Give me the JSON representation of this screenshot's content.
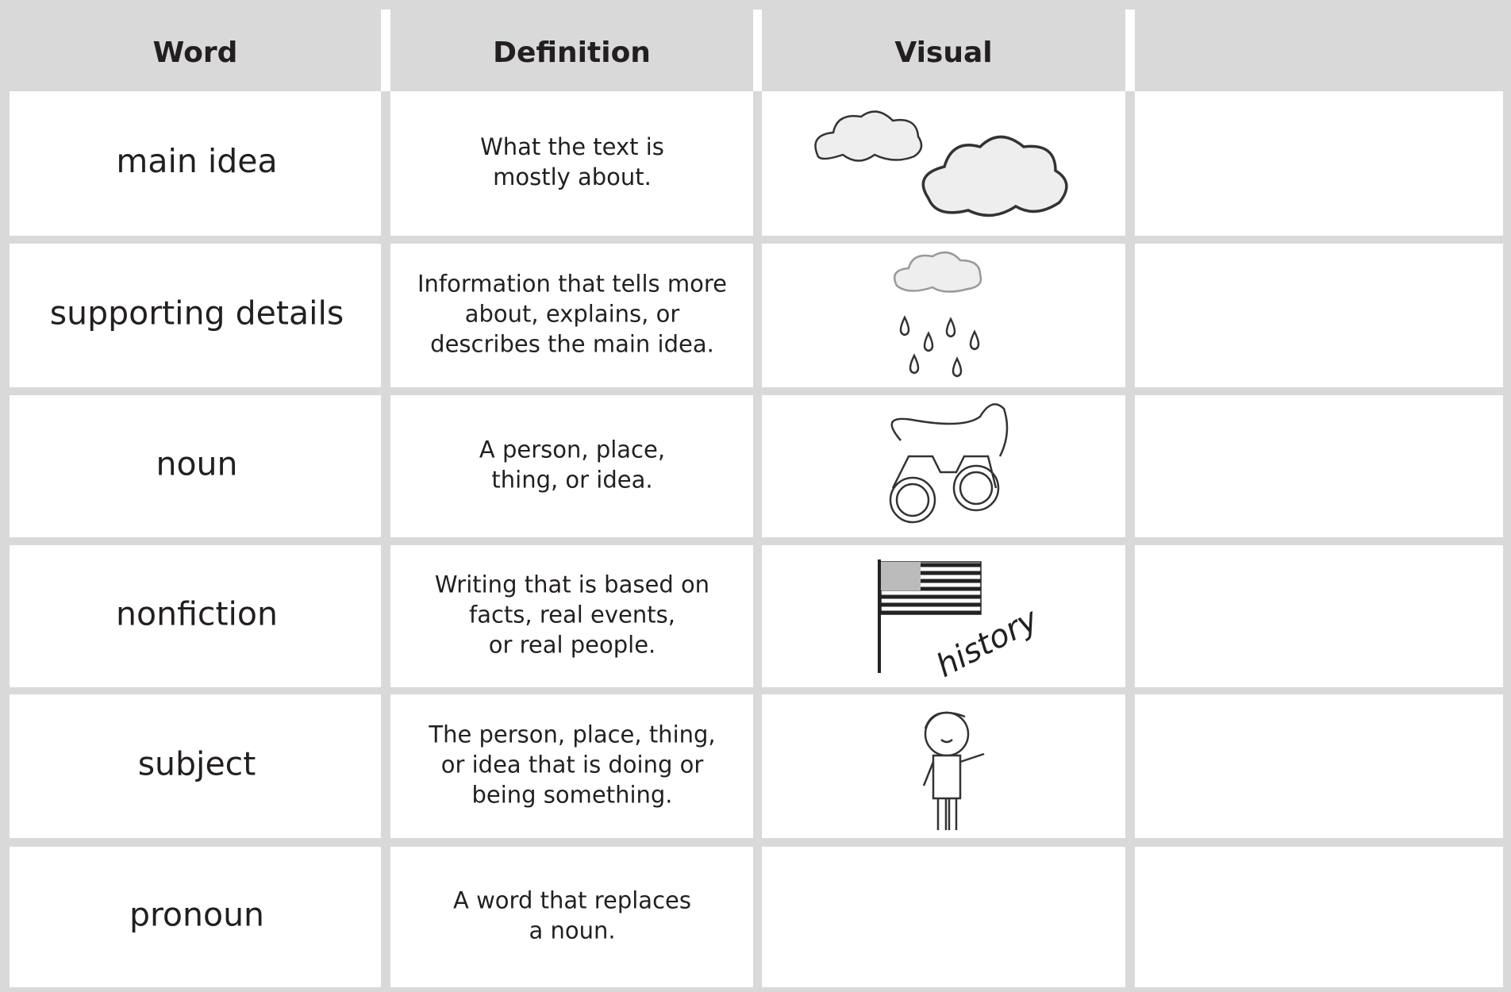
{
  "header": [
    "Word",
    "Definition",
    "Visual",
    null
  ],
  "rows": [
    {
      "word": "main idea",
      "definition": [
        "What the text is",
        "mostly about."
      ]
    },
    {
      "word": "supporting details",
      "definition": [
        "Information that tells more",
        "about, explains, or",
        "describes the main idea."
      ]
    },
    {
      "word": "noun",
      "definition": [
        "A person, place,",
        "thing, or idea."
      ]
    },
    {
      "word": "nonfiction",
      "definition": [
        "Writing that is based on",
        "facts, real events,",
        "or real people."
      ],
      "visual_label": "history"
    },
    {
      "word": "subject",
      "definition": [
        "The person, place, thing,",
        "or idea that is doing or",
        "being something."
      ]
    },
    {
      "word": "pronoun",
      "definition": [
        "A word that replaces",
        "a noun."
      ]
    }
  ]
}
